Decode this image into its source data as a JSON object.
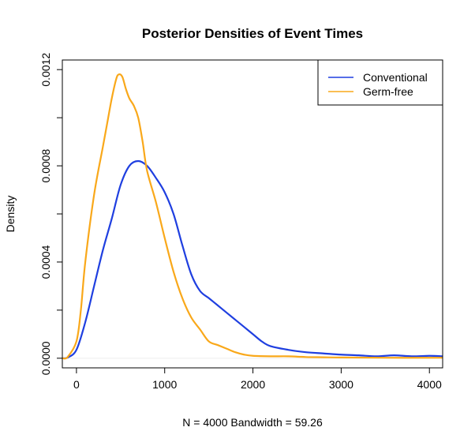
{
  "chart_data": {
    "type": "line",
    "title": "Posterior Densities of Event Times",
    "xlabel": "N = 4000   Bandwidth = 59.26",
    "ylabel": "Density",
    "xlim": [
      -160,
      4150
    ],
    "ylim": [
      -4e-05,
      0.00124
    ],
    "x_ticks": [
      0,
      1000,
      2000,
      3000,
      4000
    ],
    "x_tick_labels": [
      "0",
      "1000",
      "2000",
      "3000",
      "4000"
    ],
    "y_ticks": [
      0,
      0.0002,
      0.0004,
      0.0006,
      0.0008,
      0.001,
      0.0012
    ],
    "y_tick_labels": [
      "0.0000",
      "",
      "0.0004",
      "",
      "0.0008",
      "",
      "0.0012"
    ],
    "legend_position": "top-right",
    "baseline": {
      "y": 0,
      "color": "#eeeeee"
    },
    "series": [
      {
        "name": "Conventional",
        "color": "#1f3fe0",
        "x": [
          -160,
          -100,
          0,
          100,
          200,
          300,
          400,
          500,
          600,
          700,
          800,
          900,
          1000,
          1100,
          1200,
          1300,
          1400,
          1500,
          1600,
          1700,
          1800,
          1900,
          2000,
          2100,
          2200,
          2400,
          2600,
          2800,
          3000,
          3200,
          3400,
          3600,
          3800,
          4000,
          4150
        ],
        "values": [
          0.0,
          3e-06,
          3.5e-05,
          0.00015,
          0.0003,
          0.00045,
          0.00058,
          0.00072,
          0.0008,
          0.00082,
          0.0008,
          0.00075,
          0.00069,
          0.0006,
          0.00047,
          0.00035,
          0.00028,
          0.00025,
          0.00022,
          0.00019,
          0.00016,
          0.00013,
          0.0001,
          7e-05,
          5e-05,
          3.5e-05,
          2.5e-05,
          2e-05,
          1.5e-05,
          1.2e-05,
          8e-06,
          1.2e-05,
          8e-06,
          1e-05,
          8e-06
        ]
      },
      {
        "name": "Germ-free",
        "color": "#f9a81a",
        "x": [
          -160,
          -100,
          0,
          50,
          100,
          200,
          300,
          350,
          400,
          450,
          480,
          520,
          560,
          600,
          650,
          700,
          750,
          800,
          900,
          1000,
          1100,
          1200,
          1300,
          1400,
          1500,
          1600,
          1700,
          1800,
          1900,
          2000,
          2200,
          2400,
          2600,
          2800,
          3000,
          3500,
          4150
        ],
        "values": [
          0.0,
          5e-06,
          7e-05,
          0.0002,
          0.0004,
          0.00068,
          0.00088,
          0.00098,
          0.00108,
          0.00116,
          0.00118,
          0.00117,
          0.00112,
          0.00108,
          0.00105,
          0.001,
          0.0009,
          0.00078,
          0.00065,
          0.0005,
          0.00036,
          0.00025,
          0.00017,
          0.00012,
          7e-05,
          5.5e-05,
          4e-05,
          2.5e-05,
          1.5e-05,
          1e-05,
          8e-06,
          8e-06,
          5e-06,
          4e-06,
          3e-06,
          2e-06,
          2e-06
        ]
      }
    ]
  }
}
